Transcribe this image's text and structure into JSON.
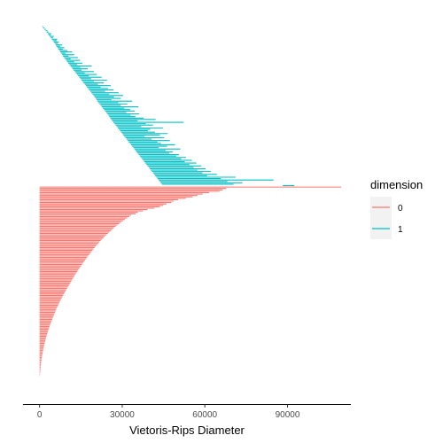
{
  "chart_data": {
    "type": "barcode",
    "xlabel": "Vietoris-Rips Diameter",
    "ylabel": "",
    "xlim": [
      -6000,
      113000
    ],
    "x_ticks": [
      0,
      30000,
      60000,
      90000
    ],
    "x_tick_labels": [
      "0",
      "30000",
      "60000",
      "90000"
    ],
    "grid": false,
    "legend": {
      "title": "dimension",
      "placement": "right",
      "entries": [
        {
          "label": "0",
          "color": "#F8766D"
        },
        {
          "label": "1",
          "color": "#00BFC4"
        }
      ]
    },
    "series": [
      {
        "name": "1",
        "color": "#00BFC4",
        "bars": [
          [
            1000,
            1300
          ],
          [
            1300,
            1800
          ],
          [
            1800,
            2300
          ],
          [
            2200,
            2900
          ],
          [
            2600,
            3200
          ],
          [
            3000,
            4200
          ],
          [
            3300,
            4100
          ],
          [
            3700,
            5200
          ],
          [
            4100,
            4900
          ],
          [
            4500,
            6400
          ],
          [
            4800,
            6200
          ],
          [
            5200,
            7000
          ],
          [
            5500,
            6700
          ],
          [
            5900,
            8200
          ],
          [
            6100,
            7600
          ],
          [
            6500,
            9000
          ],
          [
            6800,
            8400
          ],
          [
            7200,
            10100
          ],
          [
            7500,
            11800
          ],
          [
            7900,
            9400
          ],
          [
            8200,
            12600
          ],
          [
            8500,
            10500
          ],
          [
            8900,
            13900
          ],
          [
            9300,
            11300
          ],
          [
            9700,
            14700
          ],
          [
            10000,
            12600
          ],
          [
            10400,
            15500
          ],
          [
            10800,
            13700
          ],
          [
            11200,
            18900
          ],
          [
            11600,
            14800
          ],
          [
            12000,
            17500
          ],
          [
            12400,
            15300
          ],
          [
            12800,
            19700
          ],
          [
            13200,
            16400
          ],
          [
            13600,
            20800
          ],
          [
            14000,
            17900
          ],
          [
            14400,
            22500
          ],
          [
            14800,
            18700
          ],
          [
            15200,
            24500
          ],
          [
            15600,
            19700
          ],
          [
            16000,
            23300
          ],
          [
            16400,
            21200
          ],
          [
            16800,
            25800
          ],
          [
            17200,
            22200
          ],
          [
            17600,
            24900
          ],
          [
            18000,
            26900
          ],
          [
            18400,
            23800
          ],
          [
            18800,
            28700
          ],
          [
            19200,
            25300
          ],
          [
            19600,
            30300
          ],
          [
            20000,
            27000
          ],
          [
            20400,
            29500
          ],
          [
            20700,
            26100
          ],
          [
            21000,
            33600
          ],
          [
            21400,
            28600
          ],
          [
            21800,
            31800
          ],
          [
            22200,
            29400
          ],
          [
            22600,
            35900
          ],
          [
            23000,
            30800
          ],
          [
            23400,
            32900
          ],
          [
            23800,
            34500
          ],
          [
            24200,
            31500
          ],
          [
            24600,
            36200
          ],
          [
            25000,
            33100
          ],
          [
            25300,
            34800
          ],
          [
            25700,
            37800
          ],
          [
            26000,
            42100
          ],
          [
            26400,
            35600
          ],
          [
            26800,
            52300
          ],
          [
            27200,
            38600
          ],
          [
            27600,
            41200
          ],
          [
            28000,
            36900
          ],
          [
            28400,
            44800
          ],
          [
            28800,
            40200
          ],
          [
            29200,
            39300
          ],
          [
            29600,
            41900
          ],
          [
            30000,
            46500
          ],
          [
            30400,
            43700
          ],
          [
            30800,
            38100
          ],
          [
            31200,
            45200
          ],
          [
            31600,
            40700
          ],
          [
            32000,
            47300
          ],
          [
            32400,
            42800
          ],
          [
            32800,
            44100
          ],
          [
            33200,
            49200
          ],
          [
            33600,
            46300
          ],
          [
            34000,
            43300
          ],
          [
            34400,
            51100
          ],
          [
            34800,
            45700
          ],
          [
            35200,
            48400
          ],
          [
            35600,
            47100
          ],
          [
            36000,
            50600
          ],
          [
            36400,
            49700
          ],
          [
            36800,
            53200
          ],
          [
            37200,
            51400
          ],
          [
            37600,
            55300
          ],
          [
            38000,
            52700
          ],
          [
            38400,
            56900
          ],
          [
            38800,
            54400
          ],
          [
            39200,
            58700
          ],
          [
            39600,
            55900
          ],
          [
            40000,
            60300
          ],
          [
            40400,
            57300
          ],
          [
            40800,
            62200
          ],
          [
            41200,
            59100
          ],
          [
            41600,
            64400
          ],
          [
            42000,
            60800
          ],
          [
            42400,
            71200
          ],
          [
            42800,
            65800
          ],
          [
            43200,
            84900
          ],
          [
            43600,
            68200
          ],
          [
            44000,
            73600
          ],
          [
            44400,
            70400
          ],
          [
            88300,
            92500
          ]
        ]
      },
      {
        "name": "0",
        "color": "#F8766D",
        "bars": [
          [
            0,
            109500
          ],
          [
            0,
            67800
          ],
          [
            0,
            66500
          ],
          [
            0,
            65300
          ],
          [
            0,
            61600
          ],
          [
            0,
            59200
          ],
          [
            0,
            57300
          ],
          [
            0,
            55500
          ],
          [
            0,
            53100
          ],
          [
            0,
            50300
          ],
          [
            0,
            48600
          ],
          [
            0,
            47800
          ],
          [
            0,
            46100
          ],
          [
            0,
            44900
          ],
          [
            0,
            43700
          ],
          [
            0,
            41700
          ],
          [
            0,
            39200
          ],
          [
            0,
            37500
          ],
          [
            0,
            35700
          ],
          [
            0,
            34900
          ],
          [
            0,
            33200
          ],
          [
            0,
            32600
          ],
          [
            0,
            31800
          ],
          [
            0,
            31000
          ],
          [
            0,
            30300
          ],
          [
            0,
            29600
          ],
          [
            0,
            28900
          ],
          [
            0,
            28200
          ],
          [
            0,
            27600
          ],
          [
            0,
            27000
          ],
          [
            0,
            26400
          ],
          [
            0,
            25900
          ],
          [
            0,
            25300
          ],
          [
            0,
            24800
          ],
          [
            0,
            24200
          ],
          [
            0,
            23700
          ],
          [
            0,
            23200
          ],
          [
            0,
            22700
          ],
          [
            0,
            22200
          ],
          [
            0,
            21800
          ],
          [
            0,
            21300
          ],
          [
            0,
            20900
          ],
          [
            0,
            20400
          ],
          [
            0,
            20000
          ],
          [
            0,
            19600
          ],
          [
            0,
            19200
          ],
          [
            0,
            18800
          ],
          [
            0,
            18400
          ],
          [
            0,
            18000
          ],
          [
            0,
            17600
          ],
          [
            0,
            17200
          ],
          [
            0,
            16900
          ],
          [
            0,
            16500
          ],
          [
            0,
            16100
          ],
          [
            0,
            15800
          ],
          [
            0,
            15400
          ],
          [
            0,
            15100
          ],
          [
            0,
            14700
          ],
          [
            0,
            14400
          ],
          [
            0,
            14000
          ],
          [
            0,
            13700
          ],
          [
            0,
            13400
          ],
          [
            0,
            13000
          ],
          [
            0,
            12700
          ],
          [
            0,
            12400
          ],
          [
            0,
            12100
          ],
          [
            0,
            11800
          ],
          [
            0,
            11500
          ],
          [
            0,
            11200
          ],
          [
            0,
            10900
          ],
          [
            0,
            10600
          ],
          [
            0,
            10300
          ],
          [
            0,
            10000
          ],
          [
            0,
            9700
          ],
          [
            0,
            9400
          ],
          [
            0,
            9100
          ],
          [
            0,
            8800
          ],
          [
            0,
            8500
          ],
          [
            0,
            8300
          ],
          [
            0,
            8000
          ],
          [
            0,
            7700
          ],
          [
            0,
            7500
          ],
          [
            0,
            7200
          ],
          [
            0,
            7000
          ],
          [
            0,
            6700
          ],
          [
            0,
            6500
          ],
          [
            0,
            6200
          ],
          [
            0,
            6000
          ],
          [
            0,
            5800
          ],
          [
            0,
            5600
          ],
          [
            0,
            5400
          ],
          [
            0,
            5200
          ],
          [
            0,
            5000
          ],
          [
            0,
            4800
          ],
          [
            0,
            4600
          ],
          [
            0,
            4400
          ],
          [
            0,
            4200
          ],
          [
            0,
            4000
          ],
          [
            0,
            3800
          ],
          [
            0,
            3600
          ],
          [
            0,
            3500
          ],
          [
            0,
            3300
          ],
          [
            0,
            3100
          ],
          [
            0,
            3000
          ],
          [
            0,
            2800
          ],
          [
            0,
            2700
          ],
          [
            0,
            2500
          ],
          [
            0,
            2400
          ],
          [
            0,
            2200
          ],
          [
            0,
            2100
          ],
          [
            0,
            2000
          ],
          [
            0,
            1850
          ],
          [
            0,
            1700
          ],
          [
            0,
            1600
          ],
          [
            0,
            1500
          ],
          [
            0,
            1400
          ],
          [
            0,
            1300
          ],
          [
            0,
            1200
          ],
          [
            0,
            1100
          ],
          [
            0,
            1000
          ],
          [
            0,
            900
          ],
          [
            0,
            820
          ],
          [
            0,
            750
          ],
          [
            0,
            680
          ],
          [
            0,
            610
          ],
          [
            0,
            550
          ],
          [
            0,
            500
          ],
          [
            0,
            450
          ],
          [
            0,
            400
          ],
          [
            0,
            350
          ],
          [
            0,
            300
          ],
          [
            0,
            250
          ],
          [
            0,
            200
          ],
          [
            0,
            150
          ],
          [
            0,
            100
          ]
        ]
      }
    ]
  }
}
